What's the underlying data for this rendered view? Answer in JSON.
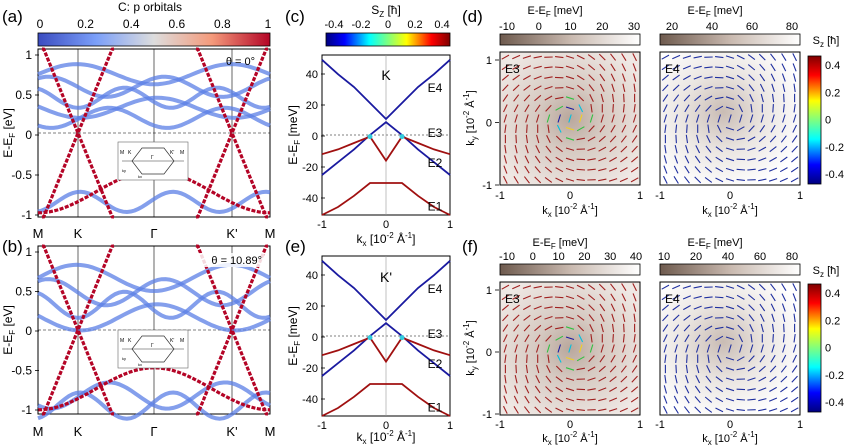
{
  "colors": {
    "orbital_low": "#3b5bdb",
    "orbital_mid": "#dddddd",
    "orbital_high": "#b40426",
    "spin_down": "#1a1aa0",
    "spin_up": "#a01010"
  },
  "panels": {
    "a": {
      "label": "(a)",
      "cbar_title": "C: p orbitals",
      "cbar_ticks": [
        "0",
        "0.2",
        "0.4",
        "0.6",
        "0.8",
        "1"
      ],
      "theta": "θ = 0°",
      "ylabel": "E-E",
      "ylabel_sub": "F",
      "ylabel_unit": " [eV]",
      "yticks": [
        "1",
        "0.5",
        "0",
        "-0.5",
        "-1"
      ],
      "inset": {
        "m_left": "M",
        "k_left": "K",
        "gamma": "Γ",
        "k_right": "K'",
        "m_right": "M",
        "kx": "kx",
        "ky": "ky"
      }
    },
    "b": {
      "label": "(b)",
      "theta": "θ = 10.89°",
      "ylabel": "E-E",
      "ylabel_sub": "F",
      "ylabel_unit": " [eV]",
      "yticks": [
        "1",
        "0.5",
        "0",
        "-0.5",
        "-1"
      ],
      "xticks": [
        "M",
        "K",
        "Γ",
        "K'",
        "M"
      ],
      "inset": {
        "m_left": "M",
        "k_left": "K",
        "gamma": "Γ",
        "k_right": "K'",
        "m_right": "M",
        "kx": "kx",
        "ky": "ky"
      }
    },
    "c": {
      "label": "(c)",
      "cbar_title": "S",
      "cbar_title_sub": "Z",
      "cbar_title_unit": " [ħ]",
      "cbar_ticks": [
        "-0.4",
        "-0.2",
        "0",
        "0.2",
        "0.4"
      ],
      "valley": "K",
      "ylabel": "E-E",
      "ylabel_sub": "F",
      "ylabel_unit": " [meV]",
      "yticks": [
        "40",
        "20",
        "0",
        "-20",
        "-40"
      ],
      "xticks": [
        "-1",
        "0",
        "1"
      ],
      "xlabel": "k",
      "xlabel_sub": "x",
      "xlabel_unit": " [10",
      "xlabel_exp": "-2",
      "xlabel_end": " Å",
      "xlabel_end_exp": "-1",
      "xlabel_close": "]",
      "bands": [
        "E4",
        "E3",
        "E2",
        "E1"
      ]
    },
    "e": {
      "label": "(e)",
      "valley": "K'",
      "ylabel": "E-E",
      "ylabel_sub": "F",
      "ylabel_unit": " [meV]",
      "yticks": [
        "40",
        "20",
        "0",
        "-20",
        "-40"
      ],
      "xticks": [
        "-1",
        "0",
        "1"
      ],
      "xlabel": "k",
      "xlabel_sub": "x",
      "xlabel_unit": " [10",
      "xlabel_exp": "-2",
      "xlabel_end": " Å",
      "xlabel_end_exp": "-1",
      "xlabel_close": "]",
      "bands": [
        "E4",
        "E3",
        "E2",
        "E1"
      ]
    },
    "d": {
      "label": "(d)",
      "left_cbar_title": "E-E",
      "left_cbar_sub": "F",
      "left_cbar_unit": " [meV]",
      "left_cbar_ticks": [
        "-10",
        "0",
        "10",
        "20",
        "30"
      ],
      "right_cbar_title": "E-E",
      "right_cbar_sub": "F",
      "right_cbar_unit": " [meV]",
      "right_cbar_ticks": [
        "20",
        "40",
        "60",
        "80"
      ],
      "left_band": "E3",
      "right_band": "E4",
      "ylabel": "k",
      "ylabel_sub": "y",
      "ylabel_unit": " [10",
      "ylabel_exp": "-2",
      "ylabel_end": " Å",
      "ylabel_end_exp": "-1",
      "ylabel_close": "]",
      "yticks": [
        "1",
        "0",
        "-1"
      ],
      "xticks_left": [
        "-1",
        "0",
        "1"
      ],
      "xticks_right": [
        "-1",
        "0",
        "1"
      ],
      "xlabel": "k",
      "xlabel_sub": "x",
      "xlabel_unit": " [10",
      "xlabel_exp": "-2",
      "xlabel_end": " Å",
      "xlabel_end_exp": "-1",
      "xlabel_close": "]",
      "sz_title": "S",
      "sz_sub": "z",
      "sz_unit": " [ħ]",
      "sz_ticks": [
        "0.4",
        "0.2",
        "0",
        "-0.2",
        "-0.4"
      ]
    },
    "f": {
      "label": "(f)",
      "left_cbar_title": "E-E",
      "left_cbar_sub": "F",
      "left_cbar_unit": " [meV]",
      "left_cbar_ticks": [
        "-10",
        "0",
        "10",
        "20",
        "30",
        "40"
      ],
      "right_cbar_title": "E-E",
      "right_cbar_sub": "F",
      "right_cbar_unit": " [meV]",
      "right_cbar_ticks": [
        "10",
        "20",
        "40",
        "60",
        "80"
      ],
      "left_band": "E3",
      "right_band": "E4",
      "ylabel": "k",
      "ylabel_sub": "y",
      "ylabel_unit": " [10",
      "ylabel_exp": "-2",
      "ylabel_end": " Å",
      "ylabel_end_exp": "-1",
      "ylabel_close": "]",
      "yticks": [
        "1",
        "0",
        "-1"
      ],
      "xticks_left": [
        "-1",
        "0",
        "1"
      ],
      "xticks_right": [
        "-1",
        "0",
        "1"
      ],
      "xlabel": "k",
      "xlabel_sub": "x",
      "xlabel_unit": " [10",
      "xlabel_exp": "-2",
      "xlabel_end": " Å",
      "xlabel_end_exp": "-1",
      "xlabel_close": "]",
      "sz_title": "S",
      "sz_sub": "z",
      "sz_unit": " [ħ]",
      "sz_ticks": [
        "0.4",
        "0.2",
        "0",
        "-0.2",
        "-0.4"
      ]
    }
  },
  "chart_data": [
    {
      "type": "line",
      "panel": "c",
      "valley": "K",
      "x": [
        -1,
        -0.75,
        -0.5,
        -0.25,
        0,
        0.25,
        0.5,
        0.75,
        1
      ],
      "series": [
        {
          "name": "E4",
          "values": [
            47,
            38,
            30,
            20,
            10,
            20,
            30,
            38,
            47
          ]
        },
        {
          "name": "E3",
          "values": [
            -25,
            -17,
            -9,
            0,
            8,
            0,
            -9,
            -17,
            -25
          ]
        },
        {
          "name": "E2",
          "values": [
            -12,
            -9,
            -5,
            -1,
            -16,
            -1,
            -5,
            -9,
            -12
          ]
        },
        {
          "name": "E1",
          "values": [
            -50,
            -45,
            -38,
            -30,
            -30,
            -30,
            -38,
            -45,
            -50
          ]
        }
      ],
      "xlim": [
        -1,
        1
      ],
      "ylim": [
        -50,
        50
      ]
    },
    {
      "type": "line",
      "panel": "e",
      "valley": "K'",
      "x": [
        -1,
        -0.75,
        -0.5,
        -0.25,
        0,
        0.25,
        0.5,
        0.75,
        1
      ],
      "series": [
        {
          "name": "E4",
          "values": [
            47,
            38,
            30,
            20,
            10,
            20,
            30,
            38,
            47
          ]
        },
        {
          "name": "E3",
          "values": [
            -25,
            -17,
            -9,
            0,
            8,
            0,
            -9,
            -17,
            -25
          ]
        },
        {
          "name": "E2",
          "values": [
            -12,
            -9,
            -5,
            -1,
            -16,
            -1,
            -5,
            -9,
            -12
          ]
        },
        {
          "name": "E1",
          "values": [
            -50,
            -45,
            -38,
            -30,
            -30,
            -30,
            -38,
            -45,
            -50
          ]
        }
      ],
      "xlim": [
        -1,
        1
      ],
      "ylim": [
        -50,
        50
      ]
    }
  ]
}
